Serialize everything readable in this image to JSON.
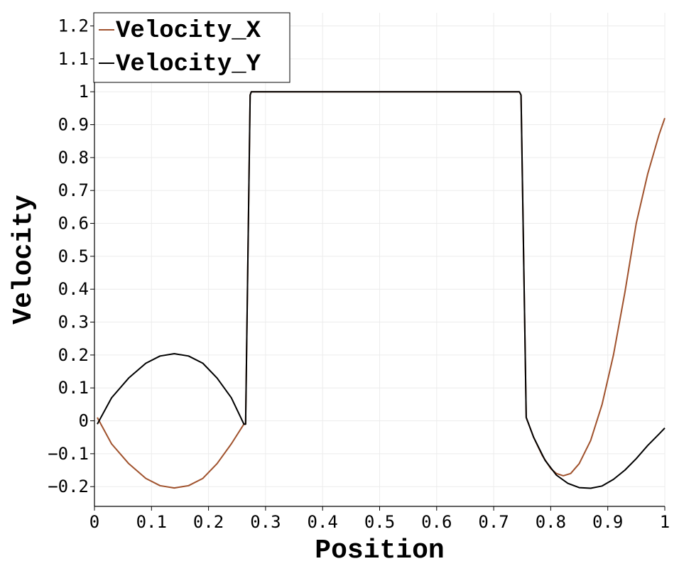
{
  "chart_data": {
    "type": "line",
    "xlabel": "Position",
    "ylabel": "Velocity",
    "xlim": [
      0,
      1
    ],
    "ylim": [
      -0.26,
      1.24
    ],
    "grid": true,
    "legend_position": "top-left",
    "x_ticks": [
      "0",
      "0.1",
      "0.2",
      "0.3",
      "0.4",
      "0.5",
      "0.6",
      "0.7",
      "0.8",
      "0.9",
      "1"
    ],
    "y_ticks": [
      "-0.2",
      "-0.1",
      "0",
      "0.1",
      "0.2",
      "0.3",
      "0.4",
      "0.5",
      "0.6",
      "0.7",
      "0.8",
      "0.9",
      "1",
      "1.1",
      "1.2"
    ],
    "series": [
      {
        "name": "Velocity_X",
        "color": "#a0522d",
        "points": [
          [
            0.005,
            0.01
          ],
          [
            0.03,
            -0.07
          ],
          [
            0.06,
            -0.13
          ],
          [
            0.09,
            -0.175
          ],
          [
            0.115,
            -0.197
          ],
          [
            0.14,
            -0.204
          ],
          [
            0.165,
            -0.197
          ],
          [
            0.19,
            -0.175
          ],
          [
            0.215,
            -0.13
          ],
          [
            0.24,
            -0.07
          ],
          [
            0.262,
            -0.01
          ],
          [
            0.265,
            -0.01
          ],
          [
            0.273,
            0.99
          ],
          [
            0.275,
            1.0
          ],
          [
            0.745,
            1.0
          ],
          [
            0.748,
            0.99
          ],
          [
            0.757,
            0.01
          ],
          [
            0.77,
            -0.05
          ],
          [
            0.785,
            -0.105
          ],
          [
            0.8,
            -0.145
          ],
          [
            0.81,
            -0.16
          ],
          [
            0.822,
            -0.167
          ],
          [
            0.835,
            -0.16
          ],
          [
            0.85,
            -0.13
          ],
          [
            0.87,
            -0.06
          ],
          [
            0.89,
            0.05
          ],
          [
            0.91,
            0.2
          ],
          [
            0.93,
            0.39
          ],
          [
            0.95,
            0.6
          ],
          [
            0.97,
            0.75
          ],
          [
            0.99,
            0.87
          ],
          [
            1.0,
            0.92
          ]
        ]
      },
      {
        "name": "Velocity_Y",
        "color": "#000000",
        "points": [
          [
            0.005,
            -0.01
          ],
          [
            0.03,
            0.07
          ],
          [
            0.06,
            0.13
          ],
          [
            0.09,
            0.175
          ],
          [
            0.115,
            0.197
          ],
          [
            0.14,
            0.204
          ],
          [
            0.165,
            0.197
          ],
          [
            0.19,
            0.175
          ],
          [
            0.215,
            0.13
          ],
          [
            0.24,
            0.07
          ],
          [
            0.262,
            -0.01
          ],
          [
            0.265,
            -0.01
          ],
          [
            0.273,
            0.99
          ],
          [
            0.275,
            1.0
          ],
          [
            0.745,
            1.0
          ],
          [
            0.748,
            0.99
          ],
          [
            0.757,
            0.01
          ],
          [
            0.77,
            -0.05
          ],
          [
            0.79,
            -0.12
          ],
          [
            0.81,
            -0.165
          ],
          [
            0.83,
            -0.19
          ],
          [
            0.85,
            -0.203
          ],
          [
            0.87,
            -0.205
          ],
          [
            0.89,
            -0.198
          ],
          [
            0.91,
            -0.178
          ],
          [
            0.93,
            -0.15
          ],
          [
            0.95,
            -0.115
          ],
          [
            0.97,
            -0.075
          ],
          [
            0.99,
            -0.04
          ],
          [
            1.0,
            -0.022
          ]
        ]
      }
    ]
  }
}
